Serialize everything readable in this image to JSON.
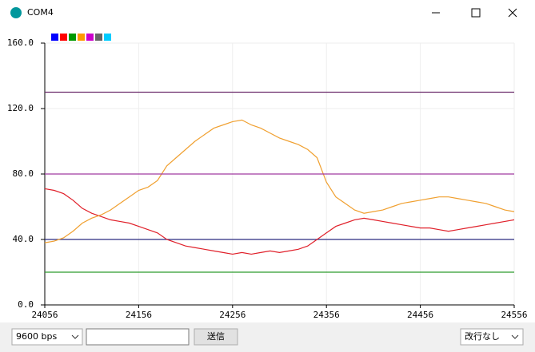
{
  "window": {
    "title": "COM4"
  },
  "chart_data": {
    "type": "line",
    "legend_colors": [
      "#0000ff",
      "#ff0000",
      "#009900",
      "#ff9900",
      "#cc00cc",
      "#666666",
      "#00ccff"
    ],
    "x": [
      24056,
      24066,
      24076,
      24086,
      24096,
      24106,
      24116,
      24126,
      24136,
      24146,
      24156,
      24166,
      24176,
      24186,
      24196,
      24206,
      24216,
      24226,
      24236,
      24246,
      24256,
      24266,
      24276,
      24286,
      24296,
      24306,
      24316,
      24326,
      24336,
      24346,
      24356,
      24366,
      24376,
      24386,
      24396,
      24406,
      24416,
      24426,
      24436,
      24446,
      24456,
      24466,
      24476,
      24486,
      24496,
      24506,
      24516,
      24526,
      24536,
      24546,
      24556
    ],
    "series": [
      {
        "color": "#2b2b80",
        "x": [
          24056,
          24556
        ],
        "values": [
          40,
          40
        ]
      },
      {
        "color": "#e0202a",
        "values": [
          71,
          70,
          68,
          64,
          59,
          56,
          54,
          52,
          51,
          50,
          48,
          46,
          44,
          40,
          38,
          36,
          35,
          34,
          33,
          32,
          31,
          32,
          31,
          32,
          33,
          32,
          33,
          34,
          36,
          40,
          44,
          48,
          50,
          52,
          53,
          52,
          51,
          50,
          49,
          48,
          47,
          47,
          46,
          45,
          46,
          47,
          48,
          49,
          50,
          51,
          52
        ]
      },
      {
        "color": "#2e9c2e",
        "x": [
          24056,
          24556
        ],
        "values": [
          20,
          20
        ]
      },
      {
        "color": "#f0a030",
        "values": [
          38,
          39,
          41,
          45,
          50,
          53,
          55,
          58,
          62,
          66,
          70,
          72,
          76,
          85,
          90,
          95,
          100,
          104,
          108,
          110,
          112,
          113,
          110,
          108,
          105,
          102,
          100,
          98,
          95,
          90,
          75,
          66,
          62,
          58,
          56,
          57,
          58,
          60,
          62,
          63,
          64,
          65,
          66,
          66,
          65,
          64,
          63,
          62,
          60,
          58,
          57
        ]
      },
      {
        "color": "#a03aa0",
        "x": [
          24056,
          24556
        ],
        "values": [
          80,
          80
        ]
      },
      {
        "color": "#6a2b6a",
        "x": [
          24056,
          24556
        ],
        "values": [
          130,
          130
        ]
      }
    ],
    "xlim": [
      24056,
      24556
    ],
    "xticks": [
      24056,
      24156,
      24256,
      24356,
      24456,
      24556
    ],
    "ylim": [
      0,
      160
    ],
    "yticks": [
      {
        "value": 0,
        "label": "0.0"
      },
      {
        "value": 40,
        "label": "40.0"
      },
      {
        "value": 80,
        "label": "80.0"
      },
      {
        "value": 120,
        "label": "120.0"
      },
      {
        "value": 160,
        "label": "160.0"
      }
    ],
    "grid": true
  },
  "controls": {
    "baud": "9600 bps",
    "send": "送信",
    "line_ending": "改行なし"
  }
}
